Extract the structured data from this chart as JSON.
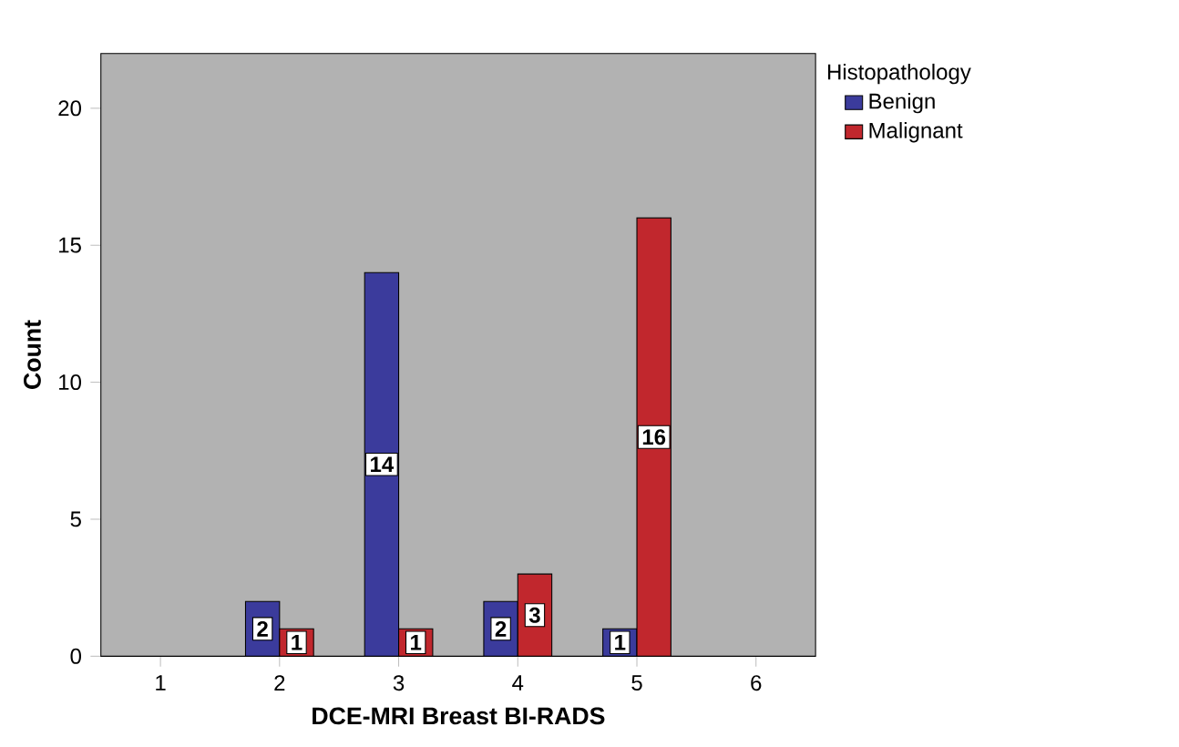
{
  "chart_data": {
    "type": "bar",
    "xlabel": "DCE-MRI Breast BI-RADS",
    "ylabel": "Count",
    "legend_title": "Histopathology",
    "categories": [
      "1",
      "2",
      "3",
      "4",
      "5",
      "6"
    ],
    "series": [
      {
        "name": "Benign",
        "color": "#3b3b9c",
        "values": [
          null,
          2,
          14,
          2,
          1,
          null
        ],
        "value_labels": [
          null,
          "2",
          "14",
          "2",
          "1",
          null
        ]
      },
      {
        "name": "Malignant",
        "color": "#c1272d",
        "values": [
          null,
          1,
          1,
          3,
          16,
          null
        ],
        "value_labels": [
          null,
          "1",
          "1",
          "3",
          "16",
          null
        ]
      }
    ],
    "ylim": [
      0,
      22
    ],
    "yticks": [
      0,
      5,
      10,
      15,
      20
    ],
    "grid": false,
    "legend": "right"
  }
}
